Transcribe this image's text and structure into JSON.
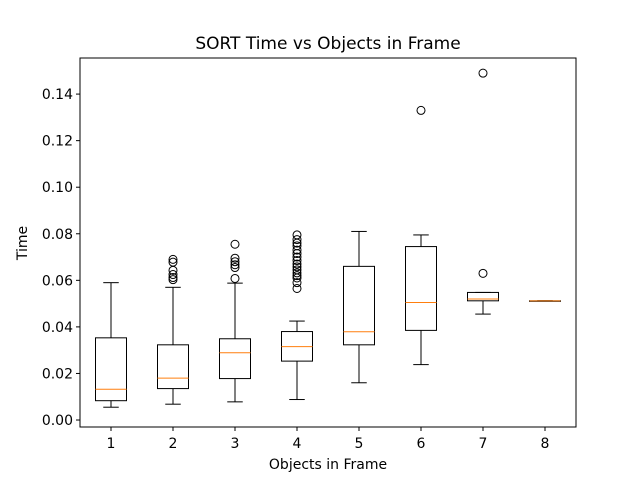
{
  "chart_data": {
    "type": "box",
    "title": "SORT Time vs Objects in Frame",
    "xlabel": "Objects in Frame",
    "ylabel": "Time",
    "categories": [
      "1",
      "2",
      "3",
      "4",
      "5",
      "6",
      "7",
      "8"
    ],
    "ylim": [
      -0.003,
      0.1555
    ],
    "yticks": [
      0.0,
      0.02,
      0.04,
      0.06,
      0.08,
      0.1,
      0.12,
      0.14
    ],
    "ytick_labels": [
      "0.00",
      "0.02",
      "0.04",
      "0.06",
      "0.08",
      "0.10",
      "0.12",
      "0.14"
    ],
    "grid": false,
    "colors": {
      "box": "#000000",
      "median": "#ff7f0e",
      "flier": "#000000"
    },
    "boxes": [
      {
        "category": "1",
        "whisker_low": 0.0055,
        "q1": 0.0083,
        "median": 0.0132,
        "q3": 0.0353,
        "whisker_high": 0.059,
        "fliers": []
      },
      {
        "category": "2",
        "whisker_low": 0.0068,
        "q1": 0.0135,
        "median": 0.018,
        "q3": 0.0323,
        "whisker_high": 0.057,
        "fliers": [
          0.0603,
          0.0612,
          0.0625,
          0.0643,
          0.0678,
          0.069
        ]
      },
      {
        "category": "3",
        "whisker_low": 0.0078,
        "q1": 0.0178,
        "median": 0.0289,
        "q3": 0.0349,
        "whisker_high": 0.0588,
        "fliers": [
          0.0608,
          0.0655,
          0.0667,
          0.068,
          0.0695,
          0.0755
        ]
      },
      {
        "category": "4",
        "whisker_low": 0.0088,
        "q1": 0.0253,
        "median": 0.0315,
        "q3": 0.038,
        "whisker_high": 0.0425,
        "fliers": [
          0.0565,
          0.059,
          0.061,
          0.062,
          0.0632,
          0.0645,
          0.0658,
          0.067,
          0.0685,
          0.07,
          0.0715,
          0.073,
          0.0748,
          0.076,
          0.0775,
          0.0795
        ]
      },
      {
        "category": "5",
        "whisker_low": 0.016,
        "q1": 0.0323,
        "median": 0.0379,
        "q3": 0.066,
        "whisker_high": 0.081,
        "fliers": []
      },
      {
        "category": "6",
        "whisker_low": 0.0238,
        "q1": 0.0385,
        "median": 0.0505,
        "q3": 0.0745,
        "whisker_high": 0.0795,
        "fliers": [
          0.133
        ]
      },
      {
        "category": "7",
        "whisker_low": 0.0455,
        "q1": 0.0512,
        "median": 0.052,
        "q3": 0.0548,
        "whisker_high": 0.0548,
        "fliers": [
          0.063,
          0.149
        ]
      },
      {
        "category": "8",
        "whisker_low": 0.0512,
        "q1": 0.0512,
        "median": 0.0512,
        "q3": 0.0512,
        "whisker_high": 0.0512,
        "fliers": []
      }
    ]
  }
}
